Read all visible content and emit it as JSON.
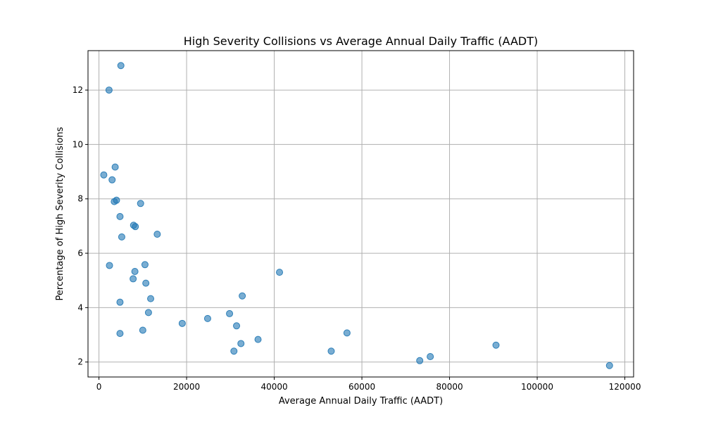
{
  "chart_data": {
    "type": "scatter",
    "title": "High Severity Collisions vs Average Annual Daily Traffic (AADT)",
    "xlabel": "Average Annual Daily Traffic (AADT)",
    "ylabel": "Percentage of High Severity Collisions",
    "xlim": [
      -2500,
      122000
    ],
    "ylim": [
      1.45,
      13.45
    ],
    "xticks": [
      0,
      20000,
      40000,
      60000,
      80000,
      100000,
      120000
    ],
    "yticks": [
      2,
      4,
      6,
      8,
      10,
      12
    ],
    "grid": true,
    "color": "#1f77b4",
    "points": [
      {
        "x": 5000,
        "y": 12.9
      },
      {
        "x": 2300,
        "y": 12.0
      },
      {
        "x": 3700,
        "y": 9.17
      },
      {
        "x": 1100,
        "y": 8.88
      },
      {
        "x": 3000,
        "y": 8.7
      },
      {
        "x": 4000,
        "y": 7.95
      },
      {
        "x": 3500,
        "y": 7.9
      },
      {
        "x": 9500,
        "y": 7.83
      },
      {
        "x": 4800,
        "y": 7.35
      },
      {
        "x": 7900,
        "y": 7.03
      },
      {
        "x": 8300,
        "y": 6.98
      },
      {
        "x": 13300,
        "y": 6.7
      },
      {
        "x": 5200,
        "y": 6.6
      },
      {
        "x": 2400,
        "y": 5.55
      },
      {
        "x": 10500,
        "y": 5.58
      },
      {
        "x": 8200,
        "y": 5.33
      },
      {
        "x": 41200,
        "y": 5.3
      },
      {
        "x": 7800,
        "y": 5.06
      },
      {
        "x": 10700,
        "y": 4.9
      },
      {
        "x": 32700,
        "y": 4.43
      },
      {
        "x": 11800,
        "y": 4.33
      },
      {
        "x": 4800,
        "y": 4.2
      },
      {
        "x": 11300,
        "y": 3.82
      },
      {
        "x": 29800,
        "y": 3.78
      },
      {
        "x": 24800,
        "y": 3.6
      },
      {
        "x": 19000,
        "y": 3.42
      },
      {
        "x": 31400,
        "y": 3.33
      },
      {
        "x": 10000,
        "y": 3.17
      },
      {
        "x": 56600,
        "y": 3.07
      },
      {
        "x": 4800,
        "y": 3.05
      },
      {
        "x": 36300,
        "y": 2.83
      },
      {
        "x": 32400,
        "y": 2.68
      },
      {
        "x": 90600,
        "y": 2.62
      },
      {
        "x": 53000,
        "y": 2.4
      },
      {
        "x": 30800,
        "y": 2.4
      },
      {
        "x": 75600,
        "y": 2.2
      },
      {
        "x": 73200,
        "y": 2.05
      },
      {
        "x": 116500,
        "y": 1.87
      }
    ]
  }
}
